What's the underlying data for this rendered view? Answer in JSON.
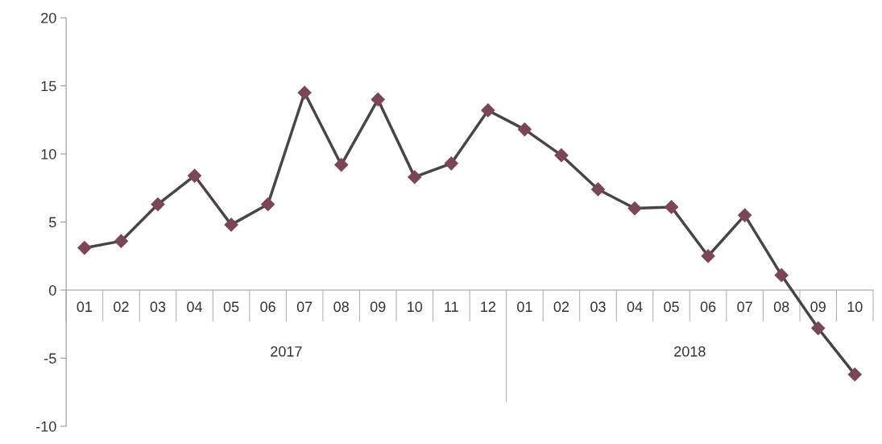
{
  "chart_data": {
    "type": "line",
    "categories": [
      "01",
      "02",
      "03",
      "04",
      "05",
      "06",
      "07",
      "08",
      "09",
      "10",
      "11",
      "12",
      "01",
      "02",
      "03",
      "04",
      "05",
      "06",
      "07",
      "08",
      "09",
      "10"
    ],
    "series": [
      {
        "color": "#7b4659",
        "values": [
          3.1,
          3.6,
          6.3,
          8.4,
          4.8,
          6.3,
          14.5,
          9.2,
          14.0,
          8.3,
          9.3,
          13.2,
          11.8,
          9.9,
          7.4,
          6.0,
          6.1,
          2.5,
          5.5,
          1.1,
          -2.8,
          -6.2
        ]
      }
    ],
    "annotations": [
      "2017",
      "2018"
    ],
    "ylim": [
      -10,
      20
    ],
    "yticks": [
      -10,
      -5,
      0,
      5,
      10,
      15,
      20
    ],
    "marker": "diamond",
    "line_style": "solid",
    "grid": false,
    "legend": false
  }
}
